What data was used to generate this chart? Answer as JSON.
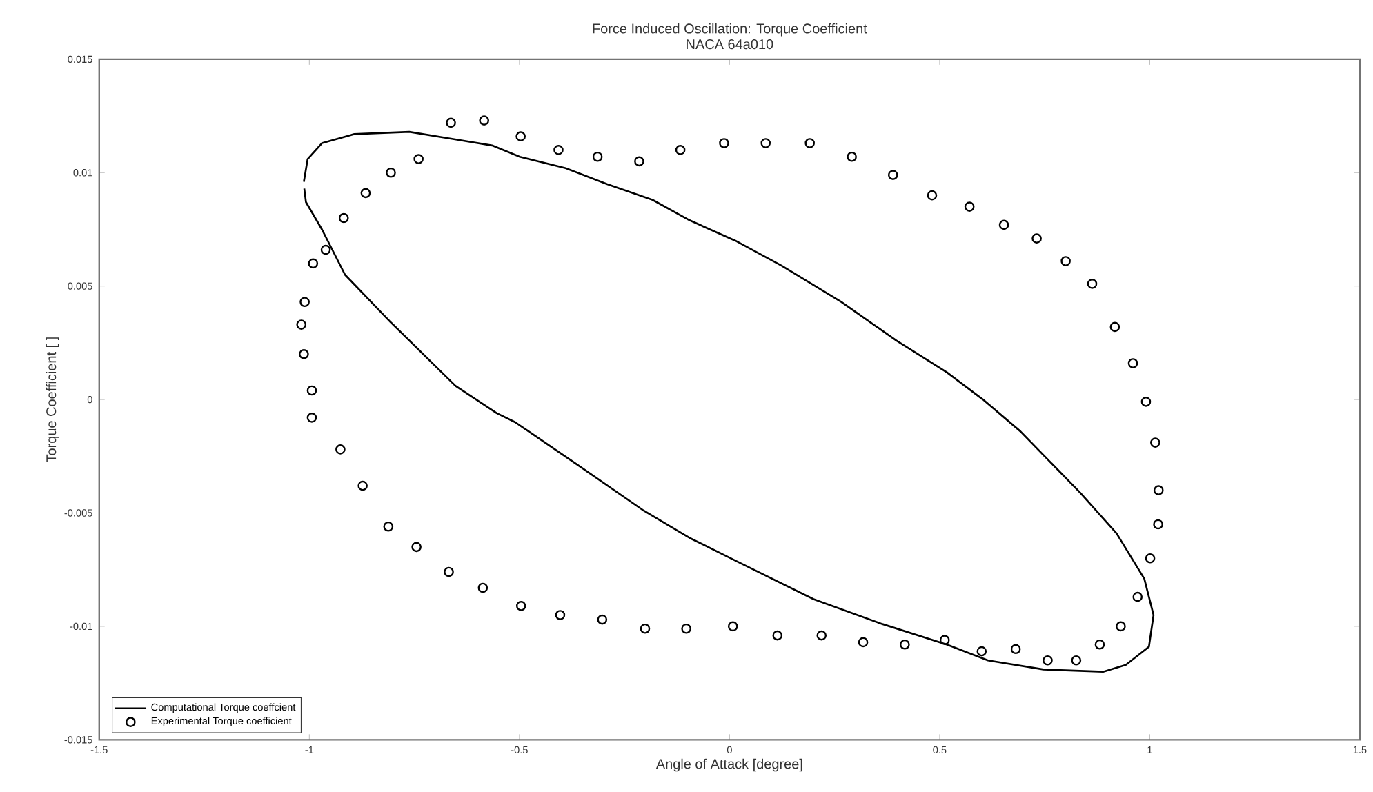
{
  "chart_data": {
    "type": "line",
    "title": "Force Induced Oscillation: Torque Coefficient",
    "subtitle": "NACA 64a010",
    "xlabel": "Angle of Attack [degree]",
    "ylabel": "Torque Coefficient [ ]",
    "xlim": [
      -1.5,
      1.5
    ],
    "ylim": [
      -0.015,
      0.015
    ],
    "xticks": [
      -1.5,
      -1,
      -0.5,
      0,
      0.5,
      1,
      1.5
    ],
    "yticks": [
      -0.015,
      -0.01,
      -0.005,
      0,
      0.005,
      0.01,
      0.015
    ],
    "legend": "bottom left",
    "series": [
      {
        "name": "Computational Torque coeffcient",
        "color": "#000000",
        "x": [
          -1.013,
          -1.004,
          -0.97,
          -0.893,
          -0.762,
          -0.663,
          -0.565,
          -0.499,
          -0.39,
          -0.292,
          -0.183,
          -0.095,
          0.014,
          0.124,
          0.266,
          0.397,
          0.517,
          0.603,
          0.692,
          0.834,
          0.921,
          0.987,
          1.009,
          0.998,
          0.943,
          0.889,
          0.747,
          0.615,
          0.517,
          0.364,
          0.2,
          0.014,
          -0.095,
          -0.204,
          -0.368,
          -0.51,
          -0.554,
          -0.652,
          -0.806,
          -0.915,
          -0.97,
          -1.008,
          -1.012
        ],
        "values": [
          0.0096,
          0.0106,
          0.0113,
          0.0117,
          0.0118,
          0.0115,
          0.0112,
          0.0107,
          0.0102,
          0.0095,
          0.0088,
          0.0079,
          0.007,
          0.0059,
          0.0043,
          0.0026,
          0.0012,
          0.0,
          -0.0014,
          -0.0041,
          -0.0059,
          -0.0079,
          -0.0095,
          -0.0109,
          -0.0117,
          -0.012,
          -0.0119,
          -0.0115,
          -0.0108,
          -0.0099,
          -0.0088,
          -0.0071,
          -0.0061,
          -0.0049,
          -0.0028,
          -0.001,
          -0.0006,
          0.0006,
          0.0034,
          0.0055,
          0.0075,
          0.0087,
          0.0093
        ]
      },
      {
        "name": "Experimental Torque coefficient",
        "type": "scatter",
        "marker": "circle",
        "color": "#000000",
        "x": [
          -0.994,
          -0.994,
          -0.926,
          -0.873,
          -0.812,
          -0.745,
          -0.668,
          -0.587,
          -0.496,
          -0.403,
          -0.303,
          -0.201,
          -0.103,
          0.008,
          0.114,
          0.219,
          0.318,
          0.417,
          0.512,
          0.6,
          0.681,
          0.757,
          0.825,
          0.881,
          0.931,
          0.971,
          1.001,
          1.02,
          1.021,
          1.013,
          0.991,
          0.96,
          0.917,
          0.863,
          0.8,
          0.731,
          0.653,
          0.571,
          0.482,
          0.389,
          0.291,
          0.191,
          0.086,
          -0.013,
          -0.117,
          -0.215,
          -0.314,
          -0.407,
          -0.497,
          -0.584,
          -0.663,
          -0.74,
          -0.806,
          -0.866,
          -0.918,
          -0.961,
          -0.991,
          -1.011,
          -1.019,
          -1.013
        ],
        "values": [
          0.0004,
          -0.0008,
          -0.0022,
          -0.0038,
          -0.0056,
          -0.0065,
          -0.0076,
          -0.0083,
          -0.0091,
          -0.0095,
          -0.0097,
          -0.0101,
          -0.0101,
          -0.01,
          -0.0104,
          -0.0104,
          -0.0107,
          -0.0108,
          -0.0106,
          -0.0111,
          -0.011,
          -0.0115,
          -0.0115,
          -0.0108,
          -0.01,
          -0.0087,
          -0.007,
          -0.0055,
          -0.004,
          -0.0019,
          -0.0001,
          0.0016,
          0.0032,
          0.0051,
          0.0061,
          0.0071,
          0.0077,
          0.0085,
          0.009,
          0.0099,
          0.0107,
          0.0113,
          0.0113,
          0.0113,
          0.011,
          0.0105,
          0.0107,
          0.011,
          0.0116,
          0.0123,
          0.0122,
          0.0106,
          0.01,
          0.0091,
          0.008,
          0.0066,
          0.006,
          0.0043,
          0.0033,
          0.002
        ]
      }
    ]
  }
}
